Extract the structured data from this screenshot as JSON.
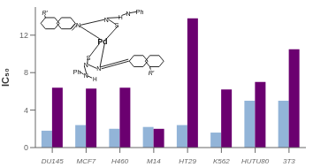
{
  "chart_data": {
    "type": "bar",
    "categories": [
      "DU145",
      "MCF7",
      "H460",
      "M14",
      "HT29",
      "K562",
      "HUTU80",
      "3T3"
    ],
    "series": [
      {
        "color": "#92b4d8",
        "values": [
          1.8,
          2.4,
          2.0,
          2.2,
          2.4,
          1.6,
          5.0,
          5.0
        ]
      },
      {
        "color": "#6b0070",
        "values": [
          6.4,
          6.3,
          6.4,
          2.0,
          13.8,
          6.2,
          7.0,
          10.5
        ]
      }
    ],
    "ylabel": "IC₅₀",
    "ylim": [
      0,
      15
    ],
    "yticks": [
      0,
      4,
      8,
      12
    ],
    "grid": false,
    "annotations": [
      "R'",
      "R'",
      "Pd",
      "N",
      "S",
      "N",
      "H",
      "N",
      "Ph",
      "S",
      "N",
      "N",
      "Ph",
      "N",
      "H"
    ]
  }
}
